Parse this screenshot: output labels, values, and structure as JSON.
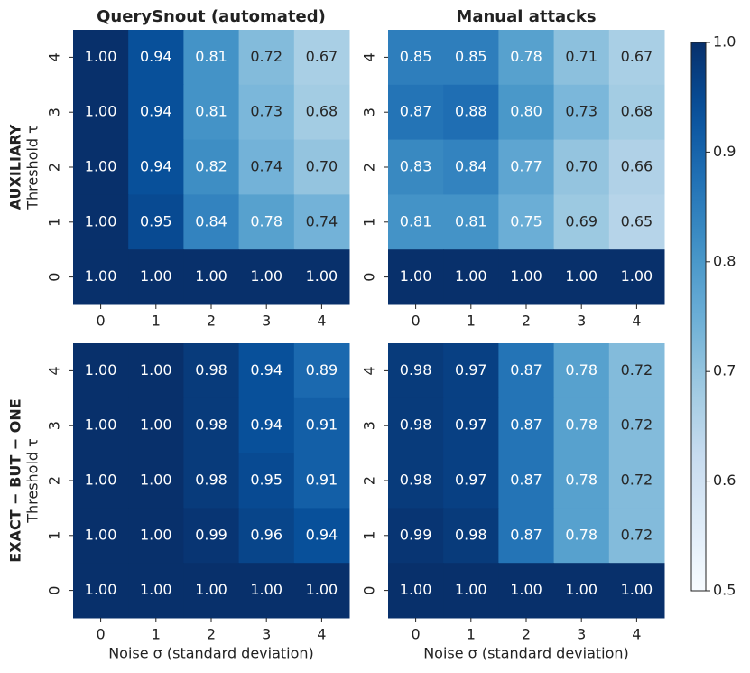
{
  "chart_data": [
    {
      "type": "heatmap",
      "title": "QuerySnout (automated)",
      "group_label": "AUXILIARY",
      "ylabel": "Threshold τ",
      "x": [
        0,
        1,
        2,
        3,
        4
      ],
      "y": [
        4,
        3,
        2,
        1,
        0
      ],
      "values": [
        [
          1.0,
          0.94,
          0.81,
          0.72,
          0.67
        ],
        [
          1.0,
          0.94,
          0.81,
          0.73,
          0.68
        ],
        [
          1.0,
          0.94,
          0.82,
          0.74,
          0.7
        ],
        [
          1.0,
          0.95,
          0.84,
          0.78,
          0.74
        ],
        [
          1.0,
          1.0,
          1.0,
          1.0,
          1.0
        ]
      ],
      "value_labels": [
        [
          "1.00",
          "0.94",
          "0.81",
          "0.72",
          "0.67"
        ],
        [
          "1.00",
          "0.94",
          "0.81",
          "0.73",
          "0.68"
        ],
        [
          "1.00",
          "0.94",
          "0.82",
          "0.74",
          "0.70"
        ],
        [
          "1.00",
          "0.95",
          "0.84",
          "0.78",
          "0.74"
        ],
        [
          "1.00",
          "1.00",
          "1.00",
          "1.00",
          "1.00"
        ]
      ]
    },
    {
      "type": "heatmap",
      "title": "Manual attacks",
      "x": [
        0,
        1,
        2,
        3,
        4
      ],
      "y": [
        4,
        3,
        2,
        1,
        0
      ],
      "values": [
        [
          0.85,
          0.85,
          0.78,
          0.71,
          0.67
        ],
        [
          0.87,
          0.88,
          0.8,
          0.73,
          0.68
        ],
        [
          0.83,
          0.84,
          0.77,
          0.7,
          0.66
        ],
        [
          0.81,
          0.81,
          0.75,
          0.69,
          0.65
        ],
        [
          1.0,
          1.0,
          1.0,
          1.0,
          1.0
        ]
      ],
      "value_labels": [
        [
          "0.85",
          "0.85",
          "0.78",
          "0.71",
          "0.67"
        ],
        [
          "0.87",
          "0.88",
          "0.80",
          "0.73",
          "0.68"
        ],
        [
          "0.83",
          "0.84",
          "0.77",
          "0.70",
          "0.66"
        ],
        [
          "0.81",
          "0.81",
          "0.75",
          "0.69",
          "0.65"
        ],
        [
          "1.00",
          "1.00",
          "1.00",
          "1.00",
          "1.00"
        ]
      ]
    },
    {
      "type": "heatmap",
      "group_label": "EXACT − BUT − ONE",
      "ylabel": "Threshold τ",
      "xlabel": "Noise σ (standard deviation)",
      "x": [
        0,
        1,
        2,
        3,
        4
      ],
      "y": [
        4,
        3,
        2,
        1,
        0
      ],
      "values": [
        [
          1.0,
          1.0,
          0.98,
          0.94,
          0.89
        ],
        [
          1.0,
          1.0,
          0.98,
          0.94,
          0.91
        ],
        [
          1.0,
          1.0,
          0.98,
          0.95,
          0.91
        ],
        [
          1.0,
          1.0,
          0.99,
          0.96,
          0.94
        ],
        [
          1.0,
          1.0,
          1.0,
          1.0,
          1.0
        ]
      ],
      "value_labels": [
        [
          "1.00",
          "1.00",
          "0.98",
          "0.94",
          "0.89"
        ],
        [
          "1.00",
          "1.00",
          "0.98",
          "0.94",
          "0.91"
        ],
        [
          "1.00",
          "1.00",
          "0.98",
          "0.95",
          "0.91"
        ],
        [
          "1.00",
          "1.00",
          "0.99",
          "0.96",
          "0.94"
        ],
        [
          "1.00",
          "1.00",
          "1.00",
          "1.00",
          "1.00"
        ]
      ]
    },
    {
      "type": "heatmap",
      "xlabel": "Noise σ (standard deviation)",
      "x": [
        0,
        1,
        2,
        3,
        4
      ],
      "y": [
        4,
        3,
        2,
        1,
        0
      ],
      "values": [
        [
          0.98,
          0.97,
          0.87,
          0.78,
          0.72
        ],
        [
          0.98,
          0.97,
          0.87,
          0.78,
          0.72
        ],
        [
          0.98,
          0.97,
          0.87,
          0.78,
          0.72
        ],
        [
          0.99,
          0.98,
          0.87,
          0.78,
          0.72
        ],
        [
          1.0,
          1.0,
          1.0,
          1.0,
          1.0
        ]
      ],
      "value_labels": [
        [
          "0.98",
          "0.97",
          "0.87",
          "0.78",
          "0.72"
        ],
        [
          "0.98",
          "0.97",
          "0.87",
          "0.78",
          "0.72"
        ],
        [
          "0.98",
          "0.97",
          "0.87",
          "0.78",
          "0.72"
        ],
        [
          "0.99",
          "0.98",
          "0.87",
          "0.78",
          "0.72"
        ],
        [
          "1.00",
          "1.00",
          "1.00",
          "1.00",
          "1.00"
        ]
      ]
    }
  ],
  "colorbar": {
    "cmap": "Blues",
    "lim": [
      0.5,
      1
    ],
    "ticks": [
      0.5,
      0.6,
      0.7,
      0.8,
      0.9,
      {
        "value": 1,
        "label": "1.0"
      }
    ]
  }
}
